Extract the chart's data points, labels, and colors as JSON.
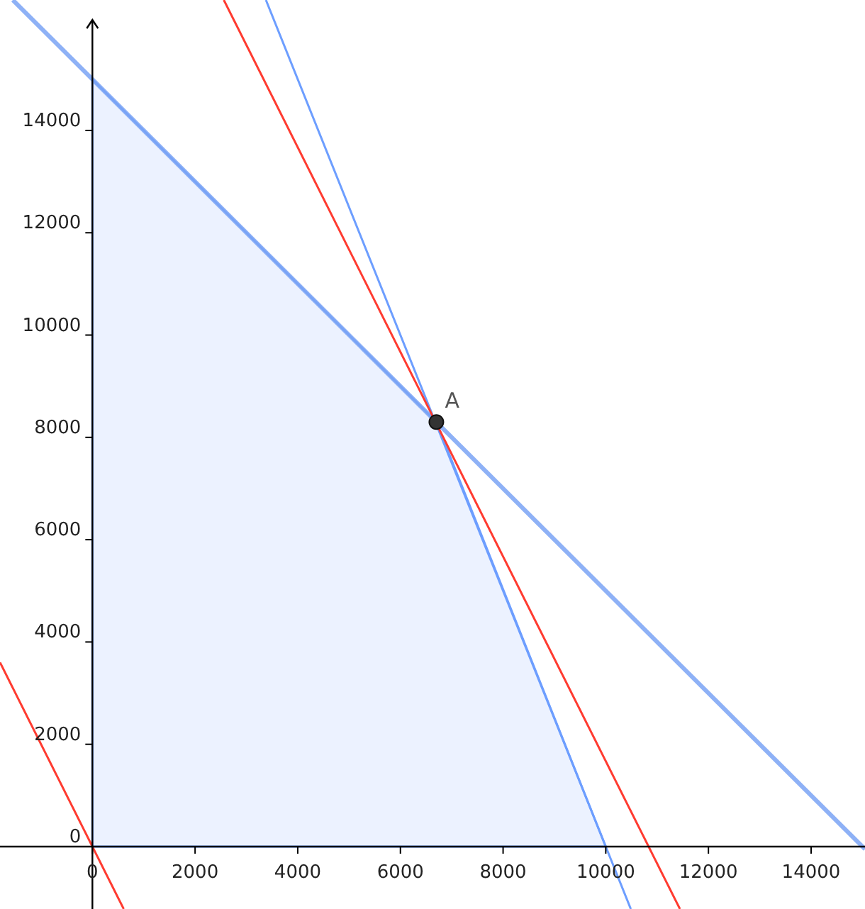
{
  "chart_data": {
    "type": "line",
    "xlim": [
      -1800,
      15050
    ],
    "ylim": [
      -1220,
      16550
    ],
    "xticks": [
      0,
      2000,
      4000,
      6000,
      8000,
      10000,
      12000,
      14000
    ],
    "yticks": [
      0,
      2000,
      4000,
      6000,
      8000,
      10000,
      12000,
      14000
    ],
    "grid": false,
    "series": [
      {
        "type": "area",
        "color": "#6d9eff",
        "x": [
          0,
          6700,
          10000
        ],
        "values": [
          15000,
          8300,
          0
        ]
      },
      {
        "color": "#7aa3f5",
        "x": [
          -1550,
          15050
        ],
        "values": [
          16550,
          -50
        ]
      },
      {
        "color": "#6d9eff",
        "x": [
          3380,
          10488
        ],
        "values": [
          16550,
          -1220
        ]
      },
      {
        "color": "#ff3b30",
        "x": [
          2560,
          11445
        ],
        "values": [
          16550,
          -1220
        ]
      },
      {
        "color": "#ff3b30",
        "x": [
          -1800,
          610
        ],
        "values": [
          3600,
          -1220
        ]
      },
      {
        "type": "scatter",
        "name": "A",
        "color": "#333333",
        "marker": "circle",
        "x": [
          6700
        ],
        "values": [
          8300
        ]
      }
    ]
  }
}
